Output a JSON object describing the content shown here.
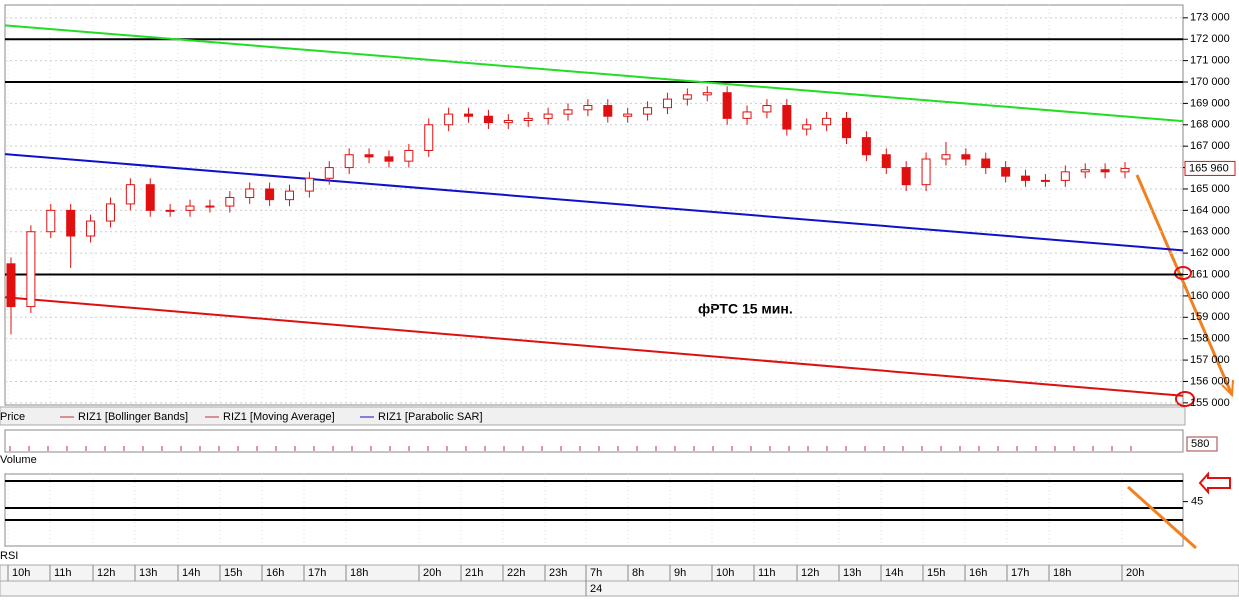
{
  "chart_data": {
    "type": "candlestick",
    "annotation": "фРТС   15 мин.",
    "legend": [
      "Price",
      "RIZ1 [Bollinger Bands]",
      "RIZ1 [Moving Average]",
      "RIZ1 [Parabolic SAR]"
    ],
    "categories": [
      "10h",
      "11h",
      "12h",
      "13h",
      "14h",
      "15h",
      "16h",
      "17h",
      "18h",
      "20h",
      "21h",
      "22h",
      "23h",
      "7h",
      "8h",
      "9h",
      "10h",
      "11h",
      "12h",
      "13h",
      "14h",
      "15h",
      "16h",
      "17h",
      "18h",
      "20h"
    ],
    "date_label": "24",
    "open": [
      161500,
      159500,
      163000,
      164000,
      162800,
      163500,
      164300,
      165200,
      164000,
      164000,
      164200,
      164200,
      164600,
      165000,
      164500,
      164900,
      165500,
      166000,
      166600,
      166500,
      166300,
      166800,
      168000,
      168500,
      168400,
      168100,
      168200,
      168300,
      168500,
      168700,
      168900,
      168400,
      168500,
      168800,
      169200,
      169400,
      169500,
      168300,
      168600,
      168900,
      167800,
      168000,
      168300,
      167400,
      166600,
      166000,
      165200,
      166400,
      166600,
      166400,
      166000,
      165600,
      165400,
      165400,
      165800,
      165900,
      165800
    ],
    "high": [
      161800,
      163300,
      164300,
      164300,
      163800,
      164600,
      165500,
      165500,
      164300,
      164500,
      164500,
      164900,
      165300,
      165300,
      165200,
      165800,
      166300,
      166900,
      166900,
      166800,
      167100,
      168300,
      168800,
      168800,
      168700,
      168500,
      168600,
      168800,
      169000,
      169200,
      169200,
      168800,
      169100,
      169500,
      169700,
      169800,
      169800,
      168900,
      169200,
      169200,
      168300,
      168600,
      168600,
      167700,
      166900,
      166300,
      166700,
      167200,
      166900,
      166700,
      166300,
      165900,
      165700,
      166100,
      166200,
      166200,
      166260
    ],
    "low": [
      158200,
      159200,
      162700,
      161300,
      162500,
      163200,
      164000,
      163700,
      163700,
      163700,
      163900,
      163900,
      164300,
      164200,
      164200,
      164600,
      165200,
      165700,
      166200,
      166000,
      166000,
      166500,
      167700,
      168100,
      167800,
      167800,
      167900,
      168000,
      168200,
      168400,
      168100,
      168100,
      168200,
      168500,
      168900,
      169100,
      168000,
      168000,
      168300,
      167500,
      167500,
      167700,
      167100,
      166300,
      165700,
      164900,
      164900,
      166100,
      166100,
      165700,
      165300,
      165100,
      165100,
      165100,
      165500,
      165500,
      165500
    ],
    "close": [
      159500,
      163000,
      164000,
      162800,
      163500,
      164300,
      165200,
      164000,
      164000,
      164200,
      164200,
      164600,
      165000,
      164500,
      164900,
      165500,
      166000,
      166600,
      166500,
      166300,
      166800,
      168000,
      168500,
      168400,
      168100,
      168200,
      168300,
      168500,
      168700,
      168900,
      168400,
      168500,
      168800,
      169200,
      169400,
      169500,
      168300,
      168600,
      168900,
      167800,
      168000,
      168300,
      167400,
      166600,
      166000,
      165200,
      166400,
      166600,
      166400,
      166000,
      165600,
      165400,
      165400,
      165800,
      165900,
      165800,
      165960
    ],
    "color": "#e01010",
    "last_price": {
      "value": 165960,
      "label": "165 960"
    },
    "levels": [
      172000,
      170000,
      161000
    ],
    "trendlines": [
      {
        "color": "#22dd22",
        "start": 172650,
        "end": 168170
      },
      {
        "color": "#1010cc",
        "start": 166630,
        "end": 162130
      },
      {
        "color": "#dd1010",
        "start": 159940,
        "end": 155330
      }
    ],
    "ylim": [
      154900,
      173600
    ],
    "yticks": [
      {
        "value": 155000,
        "label": "155 000"
      },
      {
        "value": 156000,
        "label": "156 000"
      },
      {
        "value": 157000,
        "label": "157 000"
      },
      {
        "value": 158000,
        "label": "158 000"
      },
      {
        "value": 159000,
        "label": "159 000"
      },
      {
        "value": 160000,
        "label": "160 000"
      },
      {
        "value": 161000,
        "label": "161 000"
      },
      {
        "value": 162000,
        "label": "162 000"
      },
      {
        "value": 163000,
        "label": "163 000"
      },
      {
        "value": 164000,
        "label": "164 000"
      },
      {
        "value": 165000,
        "label": "165 000"
      },
      {
        "value": 166000,
        "label": "166 000"
      },
      {
        "value": 167000,
        "label": "167 000"
      },
      {
        "value": 168000,
        "label": "168 000"
      },
      {
        "value": 169000,
        "label": "169 000"
      },
      {
        "value": 170000,
        "label": "170 000"
      },
      {
        "value": 171000,
        "label": "171 000"
      },
      {
        "value": 172000,
        "label": "172 000"
      },
      {
        "value": 173000,
        "label": "173 000"
      }
    ],
    "volume": {
      "label": "Volume",
      "last": 580
    },
    "rsi": {
      "label": "RSI",
      "ylim": [
        0,
        100
      ],
      "yticks": [
        45
      ]
    }
  }
}
